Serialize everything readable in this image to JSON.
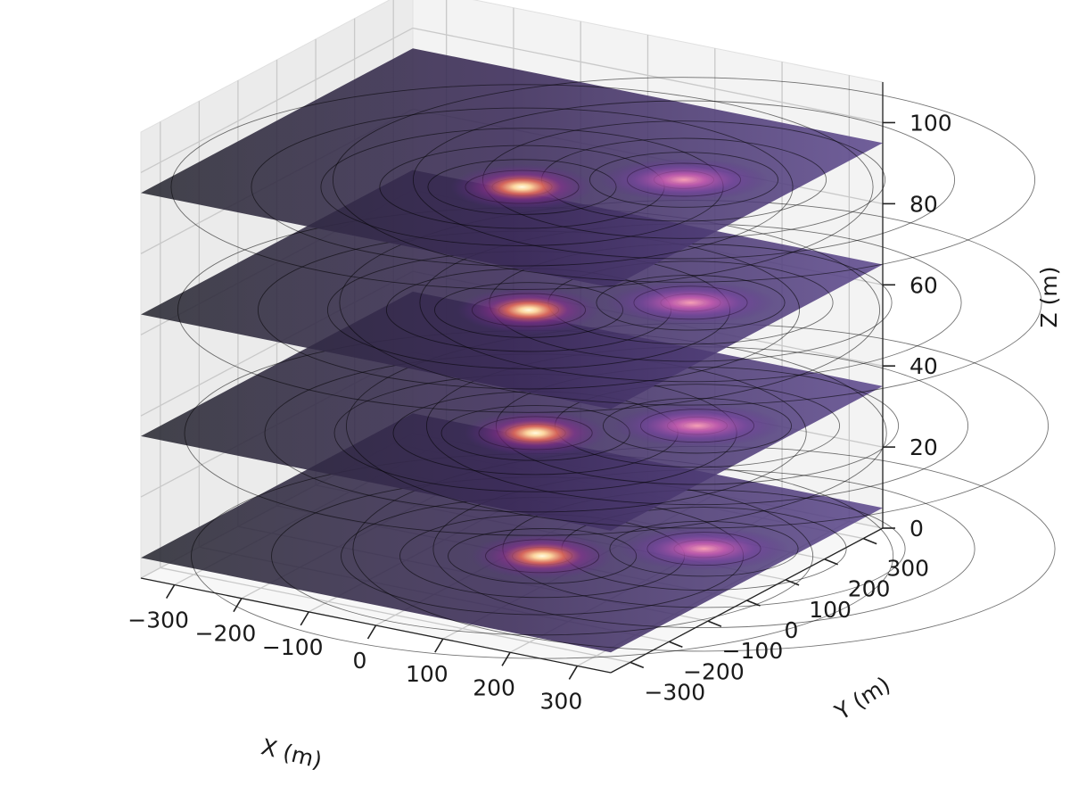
{
  "chart_data": {
    "type": "surface-3d-slices",
    "colormap": "magma",
    "xlabel": "X (m)",
    "ylabel": "Y (m)",
    "zlabel": "Z (m)",
    "xlim": [
      -350,
      350
    ],
    "ylim": [
      -350,
      350
    ],
    "zlim": [
      0,
      110
    ],
    "xticks": [
      -300,
      -200,
      -100,
      0,
      100,
      200,
      300
    ],
    "xtick_labels": [
      "−300",
      "−200",
      "−100",
      "0",
      "100",
      "200",
      "300"
    ],
    "yticks": [
      -300,
      -200,
      -100,
      0,
      100,
      200,
      300
    ],
    "ytick_labels": [
      "−300",
      "−200",
      "−100",
      "0",
      "100",
      "200",
      "300"
    ],
    "zticks": [
      0,
      20,
      40,
      60,
      80,
      100
    ],
    "ztick_labels": [
      "0",
      "20",
      "40",
      "60",
      "80",
      "100"
    ],
    "grid": true,
    "slices": [
      {
        "z": 5,
        "sources": [
          {
            "x": 80,
            "y": -60
          },
          {
            "x": 240,
            "y": 80
          }
        ]
      },
      {
        "z": 35,
        "sources": [
          {
            "x": 70,
            "y": -60
          },
          {
            "x": 230,
            "y": 80
          }
        ]
      },
      {
        "z": 65,
        "sources": [
          {
            "x": 60,
            "y": -60
          },
          {
            "x": 220,
            "y": 80
          }
        ]
      },
      {
        "z": 95,
        "sources": [
          {
            "x": 50,
            "y": -60
          },
          {
            "x": 210,
            "y": 80
          }
        ]
      }
    ]
  }
}
